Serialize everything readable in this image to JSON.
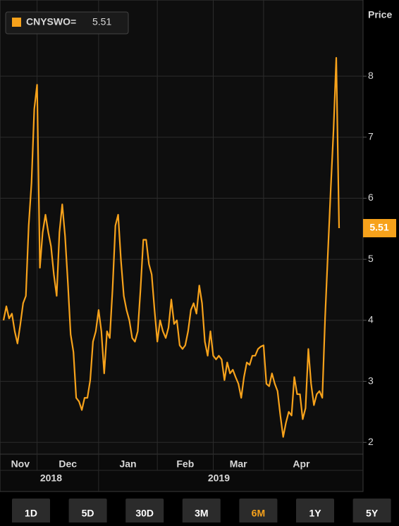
{
  "chart_data": {
    "type": "line",
    "y_axis_label": "Price",
    "categories": [
      "Nov",
      null,
      null,
      null,
      null,
      null,
      null,
      null,
      null,
      null,
      null,
      null,
      "Dec",
      null,
      null,
      null,
      null,
      null,
      null,
      null,
      null,
      null,
      null,
      null,
      null,
      null,
      null,
      null,
      null,
      null,
      null,
      null,
      null,
      null,
      "Jan",
      null,
      null,
      null,
      null,
      null,
      null,
      null,
      null,
      null,
      null,
      null,
      null,
      null,
      null,
      null,
      null,
      null,
      null,
      null,
      null,
      "Feb",
      null,
      null,
      null,
      null,
      null,
      null,
      null,
      null,
      null,
      null,
      null,
      null,
      null,
      null,
      null,
      null,
      null,
      null,
      null,
      "Mar",
      null,
      null,
      null,
      null,
      null,
      null,
      null,
      null,
      null,
      null,
      null,
      null,
      null,
      null,
      null,
      null,
      null,
      "Apr",
      null,
      null,
      null,
      null,
      null,
      null,
      null,
      null,
      null,
      null,
      null,
      null,
      null,
      null,
      null,
      null,
      null,
      null,
      null,
      null,
      null,
      null,
      null,
      null,
      null,
      null,
      null
    ],
    "years": [
      "2018",
      "2019"
    ],
    "series": [
      {
        "name": "CNYSWO=",
        "color": "#f7a21b",
        "values": [
          4.0,
          4.23,
          4.03,
          4.11,
          3.82,
          3.62,
          3.93,
          4.28,
          4.4,
          5.55,
          6.25,
          7.46,
          7.86,
          4.86,
          5.44,
          5.73,
          5.44,
          5.21,
          4.75,
          4.4,
          5.44,
          5.9,
          5.38,
          4.63,
          3.77,
          3.48,
          2.73,
          2.67,
          2.53,
          2.73,
          2.73,
          3.02,
          3.65,
          3.82,
          4.17,
          3.82,
          3.13,
          3.82,
          3.71,
          4.52,
          5.55,
          5.73,
          4.98,
          4.4,
          4.17,
          4.0,
          3.71,
          3.65,
          3.82,
          4.52,
          5.32,
          5.32,
          4.92,
          4.75,
          4.17,
          3.65,
          4.0,
          3.82,
          3.71,
          3.88,
          4.34,
          3.94,
          4.0,
          3.59,
          3.53,
          3.59,
          3.82,
          4.17,
          4.28,
          4.11,
          4.57,
          4.28,
          3.65,
          3.42,
          3.82,
          3.42,
          3.36,
          3.42,
          3.36,
          3.02,
          3.31,
          3.13,
          3.19,
          3.07,
          2.96,
          2.73,
          3.07,
          3.31,
          3.27,
          3.42,
          3.42,
          3.53,
          3.57,
          3.59,
          2.96,
          2.92,
          3.13,
          2.96,
          2.84,
          2.44,
          2.09,
          2.32,
          2.5,
          2.44,
          3.07,
          2.79,
          2.79,
          2.38,
          2.56,
          3.53,
          2.96,
          2.61,
          2.79,
          2.84,
          2.73,
          4.05,
          5.09,
          6.13,
          7.11,
          8.3,
          5.51
        ]
      }
    ],
    "ylim": [
      1.83,
      9.19
    ],
    "yticks": [
      2,
      3,
      4,
      5,
      6,
      7,
      8
    ],
    "grid": true,
    "range_buttons": [
      {
        "label": "1D"
      },
      {
        "label": "5D"
      },
      {
        "label": "30D"
      },
      {
        "label": "3M"
      },
      {
        "label": "6M",
        "active": true
      },
      {
        "label": "1Y"
      },
      {
        "label": "5Y"
      }
    ]
  }
}
